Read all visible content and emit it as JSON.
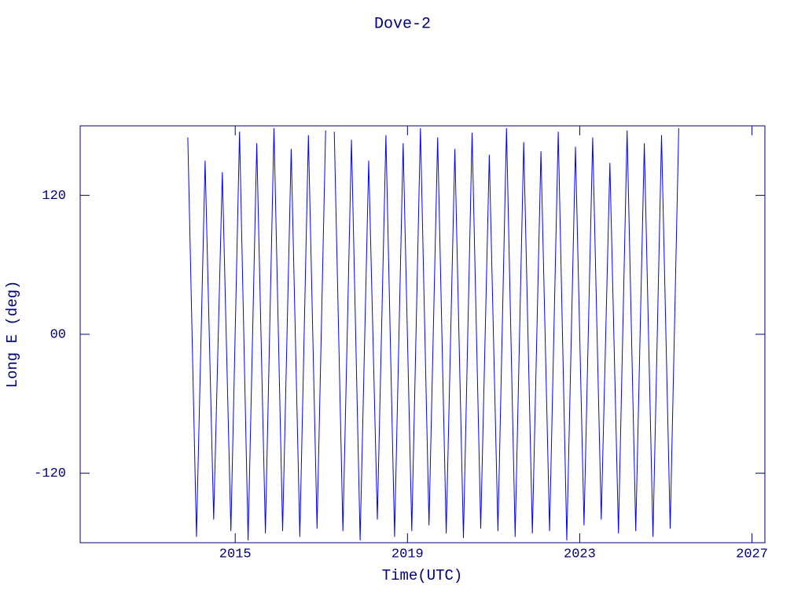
{
  "chart_data": {
    "type": "line",
    "title": "Dove-2",
    "xlabel": "Time(UTC)",
    "ylabel": "Long E (deg)",
    "x": [
      2013.9,
      2014.1,
      2014.3,
      2014.5,
      2014.7,
      2014.9,
      2015.1,
      2015.3,
      2015.5,
      2015.7,
      2015.9,
      2016.1,
      2016.3,
      2016.5,
      2016.7,
      2016.9,
      2017.1,
      2017.2,
      2017.3,
      2017.5,
      2017.7,
      2017.9,
      2018.1,
      2018.3,
      2018.5,
      2018.7,
      2018.9,
      2019.1,
      2019.3,
      2019.5,
      2019.7,
      2019.9,
      2020.1,
      2020.3,
      2020.5,
      2020.7,
      2020.9,
      2021.1,
      2021.3,
      2021.5,
      2021.7,
      2021.9,
      2022.1,
      2022.3,
      2022.5,
      2022.7,
      2022.9,
      2023.1,
      2023.3,
      2023.5,
      2023.7,
      2023.9,
      2024.1,
      2024.3,
      2024.5,
      2024.7,
      2024.9,
      2025.1,
      2025.3
    ],
    "series": [
      {
        "color": "#0000ff",
        "values": [
          170,
          -175,
          150,
          -160,
          140,
          -170,
          175,
          -178,
          165,
          -172,
          178,
          -170,
          160,
          -175,
          172,
          -168,
          176,
          null,
          175,
          -170,
          168,
          -178,
          150,
          -160,
          172,
          -175,
          165,
          -170,
          178,
          -165,
          170,
          -172,
          160,
          -176,
          174,
          -168,
          155,
          -170,
          178,
          -175,
          166,
          -172,
          158,
          -170,
          175,
          -178,
          162,
          -165,
          170,
          -160,
          148,
          -172,
          176,
          -170,
          165,
          -175,
          172,
          -168,
          178
        ]
      }
    ],
    "xlim": [
      2011.4,
      2027.3
    ],
    "xticks": [
      2015,
      2019,
      2023,
      2027
    ],
    "ylim": [
      -180,
      180
    ],
    "yticks": [
      -120,
      {
        "value": 0,
        "label": "00"
      },
      120
    ],
    "axis_color": "#000080"
  }
}
